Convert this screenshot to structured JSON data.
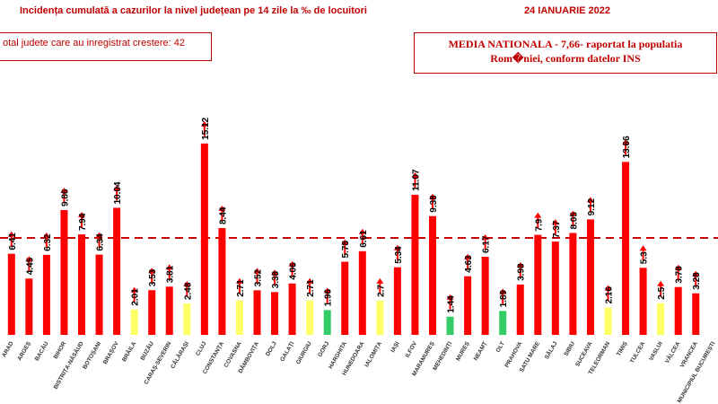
{
  "header": {
    "title": "Incidența cumulată a cazurilor la nivel județean pe 14 zile la ‰ de locuitori",
    "date": "24 IANUARIE 2022"
  },
  "info_left": "otal judete care au inregistrat crestere: 42",
  "info_right": {
    "line1": "MEDIA NATIONALA - 7,66-  raportat la populatia",
    "line2": "Rom�niei, conform datelor INS"
  },
  "colors": {
    "red": "#ff0000",
    "yellow": "#ffff66",
    "green": "#33cc66",
    "arrow": "#ff0000",
    "title": "#c00000"
  },
  "chart_data": {
    "type": "bar",
    "reference_line": 7.66,
    "categories": [
      "ARAD",
      "ARGEȘ",
      "BACĂU",
      "BIHOR",
      "BISTRIȚA-NĂSĂUD",
      "BOTOȘANI",
      "BRAȘOV",
      "BRĂILA",
      "BUZĂU",
      "CARAȘ-SEVERIN",
      "CĂLĂRAȘI",
      "CLUJ",
      "CONSTANȚA",
      "COVASNA",
      "DÂMBOVIȚA",
      "DOLJ",
      "GALAȚI",
      "GIURGIU",
      "GORJ",
      "HARGHITA",
      "HUNEDOARA",
      "IALOMIȚA",
      "IAȘI",
      "ILFOV",
      "MARAMUREȘ",
      "MEHEDINȚI",
      "MUREȘ",
      "NEAMȚ",
      "OLT",
      "PRAHOVA",
      "SATU MARE",
      "SĂLAJ",
      "SIBIU",
      "SUCEAVA",
      "TELEORMAN",
      "TIMIȘ",
      "TULCEA",
      "VASLUI",
      "VÂLCEA",
      "VRANCEA",
      "MUNICIPIUL BUCUREȘTI"
    ],
    "values": [
      6.41,
      4.45,
      6.32,
      9.86,
      7.94,
      6.34,
      10.04,
      2.01,
      3.53,
      3.81,
      2.48,
      15.12,
      8.44,
      2.71,
      3.52,
      3.38,
      4.06,
      2.71,
      1.96,
      5.78,
      6.61,
      2.7,
      5.34,
      11.07,
      9.38,
      1.44,
      4.63,
      6.17,
      1.89,
      3.98,
      7.9,
      7.37,
      8.05,
      9.12,
      2.16,
      13.66,
      5.3,
      2.5,
      3.78,
      3.28,
      null
    ],
    "value_labels": [
      "6.41",
      "4.45",
      "6.32",
      "9.86",
      "7.94",
      "6.34",
      "10.04",
      "2.01",
      "3.53",
      "3.81",
      "2.48",
      "15.12",
      "8.44",
      "2.71",
      "3.52",
      "3.38",
      "4.06",
      "2.71",
      "1.96",
      "5.78",
      "6.61",
      "2.7",
      "5.34",
      "11.07",
      "9.38",
      "1.44",
      "4.63",
      "6.17",
      "1.89",
      "3.98",
      "7.9",
      "7.37",
      "8.05",
      "9.12",
      "2.16",
      "13.66",
      "5.3",
      "2.5",
      "3.78",
      "3.28",
      ""
    ],
    "colors": [
      "red",
      "red",
      "red",
      "red",
      "red",
      "red",
      "red",
      "yellow",
      "red",
      "red",
      "yellow",
      "red",
      "red",
      "yellow",
      "red",
      "red",
      "red",
      "yellow",
      "green",
      "red",
      "red",
      "yellow",
      "red",
      "red",
      "red",
      "green",
      "red",
      "red",
      "green",
      "red",
      "red",
      "red",
      "red",
      "red",
      "yellow",
      "red",
      "red",
      "yellow",
      "red",
      "red",
      "red"
    ]
  }
}
